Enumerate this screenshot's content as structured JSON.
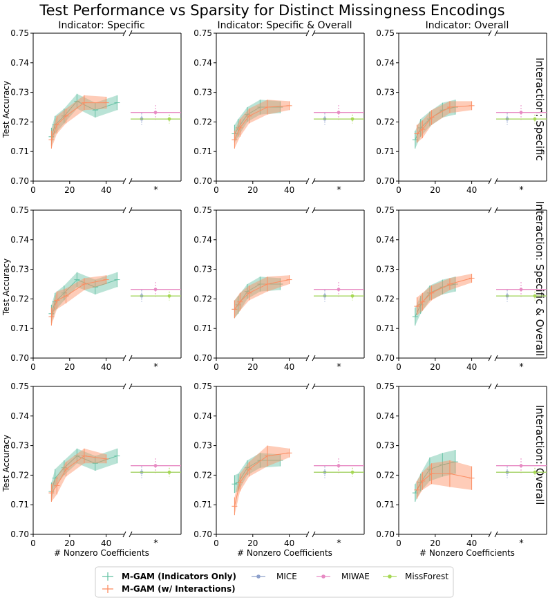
{
  "figure": {
    "title": "Test Performance vs Sparsity for Distinct Missingness Encodings",
    "column_titles": [
      "Indicator: Specific",
      "Indicator: Specific & Overall",
      "Indicator: Overall"
    ],
    "row_titles": [
      "Interaction: Specific",
      "Interaction: Specific & Overall",
      "Interaction: Overall"
    ],
    "ylabel": "Test Accuracy",
    "xlabel": "# Nonzero Coefficients",
    "y_ticks": [
      "0.70",
      "0.71",
      "0.72",
      "0.73",
      "0.74",
      "0.75"
    ],
    "x_ticks": [
      "0",
      "20",
      "40"
    ],
    "star_label": "*",
    "legend": {
      "mgam_ind": "M-GAM (Indicators Only)",
      "mgam_int": "M-GAM (w/ Interactions)",
      "mice": "MICE",
      "miwae": "MIWAE",
      "missforest": "MissForest"
    },
    "colors": {
      "mgam_ind": "#66c2a5",
      "mgam_int": "#fc8d62",
      "mice": "#8da0cb",
      "miwae": "#e78ac3",
      "missforest": "#a6d854"
    }
  },
  "chart_data": {
    "type": "line",
    "ylim": [
      0.7,
      0.75
    ],
    "xlim": [
      0,
      50
    ],
    "x_ticks": [
      0,
      20,
      40
    ],
    "baselines": {
      "MICE": {
        "acc": 0.721,
        "err": 0.002
      },
      "MIWAE": {
        "acc": 0.7232,
        "err": 0.0025
      },
      "MissForest": {
        "acc": 0.721,
        "err": 0.0015
      }
    },
    "panels": [
      {
        "row": 0,
        "col": 0,
        "ind": [
          [
            10,
            0.715,
            0.003
          ],
          [
            12,
            0.719,
            0.003
          ],
          [
            17,
            0.722,
            0.0025
          ],
          [
            24,
            0.727,
            0.0025
          ],
          [
            34,
            0.724,
            0.0025
          ],
          [
            46,
            0.7265,
            0.0025
          ]
        ],
        "int": [
          [
            10,
            0.714,
            0.003
          ],
          [
            13,
            0.719,
            0.003
          ],
          [
            18,
            0.722,
            0.0025
          ],
          [
            28,
            0.7265,
            0.0025
          ],
          [
            40,
            0.7265,
            0.002
          ]
        ]
      },
      {
        "row": 0,
        "col": 1,
        "ind": [
          [
            10,
            0.716,
            0.003
          ],
          [
            12,
            0.718,
            0.003
          ],
          [
            17,
            0.7225,
            0.0025
          ],
          [
            24,
            0.725,
            0.0025
          ],
          [
            35,
            0.725,
            0.002
          ]
        ],
        "int": [
          [
            10,
            0.714,
            0.003
          ],
          [
            13,
            0.718,
            0.003
          ],
          [
            18,
            0.722,
            0.0025
          ],
          [
            28,
            0.725,
            0.0025
          ],
          [
            40,
            0.7255,
            0.0015
          ]
        ]
      },
      {
        "row": 0,
        "col": 2,
        "ind": [
          [
            9,
            0.714,
            0.003
          ],
          [
            12,
            0.718,
            0.003
          ],
          [
            17,
            0.721,
            0.0025
          ],
          [
            24,
            0.724,
            0.0025
          ],
          [
            31,
            0.725,
            0.0025
          ]
        ],
        "int": [
          [
            10,
            0.716,
            0.003
          ],
          [
            13,
            0.7175,
            0.003
          ],
          [
            18,
            0.7215,
            0.0025
          ],
          [
            28,
            0.725,
            0.002
          ],
          [
            40,
            0.7255,
            0.0015
          ]
        ]
      },
      {
        "row": 1,
        "col": 0,
        "ind": [
          [
            10,
            0.715,
            0.003
          ],
          [
            12,
            0.719,
            0.003
          ],
          [
            17,
            0.722,
            0.0025
          ],
          [
            24,
            0.7265,
            0.0025
          ],
          [
            34,
            0.724,
            0.0025
          ],
          [
            46,
            0.7265,
            0.0025
          ]
        ],
        "int": [
          [
            10,
            0.714,
            0.003
          ],
          [
            13,
            0.7195,
            0.003
          ],
          [
            18,
            0.721,
            0.0025
          ],
          [
            28,
            0.725,
            0.002
          ],
          [
            40,
            0.7265,
            0.0015
          ]
        ]
      },
      {
        "row": 1,
        "col": 1,
        "ind": [
          [
            10,
            0.7165,
            0.003
          ],
          [
            12,
            0.718,
            0.003
          ],
          [
            17,
            0.7225,
            0.0025
          ],
          [
            24,
            0.725,
            0.0025
          ],
          [
            35,
            0.725,
            0.002
          ]
        ],
        "int": [
          [
            10,
            0.7165,
            0.003
          ],
          [
            13,
            0.719,
            0.003
          ],
          [
            18,
            0.722,
            0.0025
          ],
          [
            28,
            0.725,
            0.0025
          ],
          [
            40,
            0.7265,
            0.0015
          ]
        ]
      },
      {
        "row": 1,
        "col": 2,
        "ind": [
          [
            9,
            0.714,
            0.003
          ],
          [
            12,
            0.718,
            0.003
          ],
          [
            17,
            0.722,
            0.0025
          ],
          [
            24,
            0.724,
            0.0025
          ],
          [
            31,
            0.725,
            0.0025
          ]
        ],
        "int": [
          [
            10,
            0.7175,
            0.003
          ],
          [
            13,
            0.719,
            0.003
          ],
          [
            18,
            0.722,
            0.0025
          ],
          [
            28,
            0.725,
            0.002
          ],
          [
            40,
            0.727,
            0.0015
          ]
        ]
      },
      {
        "row": 2,
        "col": 0,
        "ind": [
          [
            10,
            0.7145,
            0.003
          ],
          [
            12,
            0.719,
            0.003
          ],
          [
            17,
            0.7225,
            0.0025
          ],
          [
            24,
            0.7265,
            0.0025
          ],
          [
            34,
            0.724,
            0.0025
          ],
          [
            46,
            0.7265,
            0.0025
          ]
        ],
        "int": [
          [
            10,
            0.714,
            0.003
          ],
          [
            13,
            0.7165,
            0.003
          ],
          [
            18,
            0.722,
            0.0025
          ],
          [
            28,
            0.7265,
            0.0025
          ],
          [
            40,
            0.7255,
            0.0015
          ]
        ]
      },
      {
        "row": 2,
        "col": 1,
        "ind": [
          [
            10,
            0.717,
            0.003
          ],
          [
            12,
            0.7175,
            0.003
          ],
          [
            17,
            0.7225,
            0.0025
          ],
          [
            24,
            0.725,
            0.0025
          ],
          [
            35,
            0.725,
            0.002
          ]
        ],
        "int": [
          [
            10,
            0.7095,
            0.003
          ],
          [
            13,
            0.7175,
            0.003
          ],
          [
            18,
            0.722,
            0.0025
          ],
          [
            28,
            0.7265,
            0.0035
          ],
          [
            40,
            0.7275,
            0.0015
          ]
        ]
      },
      {
        "row": 2,
        "col": 2,
        "ind": [
          [
            9,
            0.714,
            0.003
          ],
          [
            12,
            0.7175,
            0.003
          ],
          [
            17,
            0.722,
            0.004
          ],
          [
            24,
            0.7235,
            0.004
          ],
          [
            31,
            0.7245,
            0.004
          ]
        ],
        "int": [
          [
            10,
            0.715,
            0.003
          ],
          [
            13,
            0.718,
            0.003
          ],
          [
            18,
            0.7205,
            0.0035
          ],
          [
            28,
            0.7205,
            0.0045
          ],
          [
            40,
            0.719,
            0.004
          ]
        ]
      }
    ]
  }
}
